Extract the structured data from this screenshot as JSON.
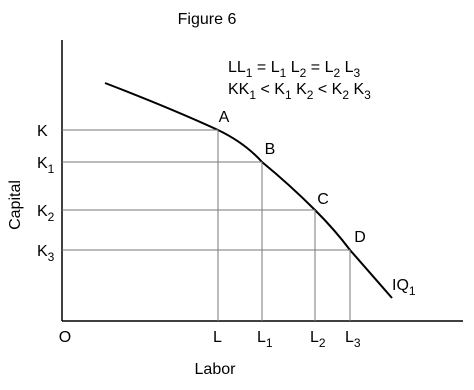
{
  "title": "Figure 6",
  "axis_labels": {
    "x": "Labor",
    "y": "Capital",
    "origin": "O"
  },
  "equations": [
    [
      {
        "t": "LL",
        "s": "1"
      },
      {
        "t": " = L",
        "s": "1"
      },
      {
        "t": " L",
        "s": "2"
      },
      {
        "t": " = L",
        "s": "2"
      },
      {
        "t": " L",
        "s": "3"
      }
    ],
    [
      {
        "t": "KK",
        "s": "1"
      },
      {
        "t": " < K",
        "s": "1"
      },
      {
        "t": " K",
        "s": "2"
      },
      {
        "t": " < K",
        "s": "2"
      },
      {
        "t": " K",
        "s": "3"
      }
    ]
  ],
  "points": [
    {
      "label": "A",
      "k": {
        "t": "K"
      },
      "l": {
        "t": "L"
      }
    },
    {
      "label": "B",
      "k": {
        "t": "K",
        "s": "1"
      },
      "l": {
        "t": "L",
        "s": "1"
      }
    },
    {
      "label": "C",
      "k": {
        "t": "K",
        "s": "2"
      },
      "l": {
        "t": "L",
        "s": "2"
      }
    },
    {
      "label": "D",
      "k": {
        "t": "K",
        "s": "3"
      },
      "l": {
        "t": "L",
        "s": "3"
      }
    }
  ],
  "curve_label": {
    "t": "IQ",
    "s": "1"
  }
}
